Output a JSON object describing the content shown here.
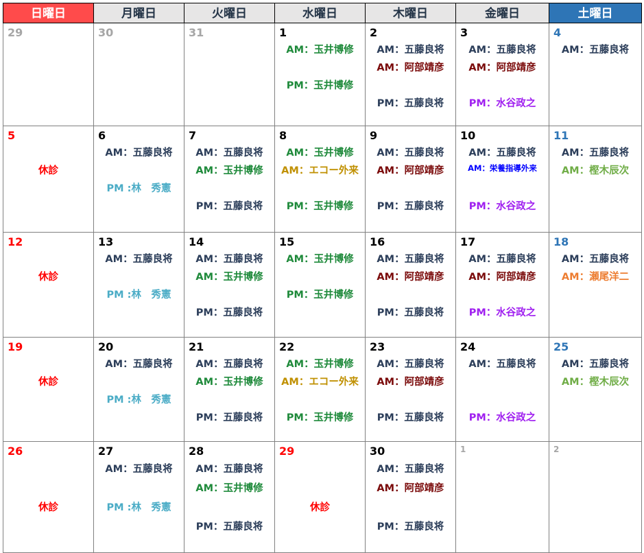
{
  "colors": {
    "navy": "#2c3e5a",
    "green": "#1f8a3b",
    "darkred": "#7a0a0a",
    "purple": "#a020f0",
    "olive": "#c09000",
    "blue": "#0000ff",
    "lightblue": "#4bacc6",
    "lightgreen": "#70ad47",
    "orange": "#ed7d31",
    "red": "#ff0000"
  },
  "weekdays": [
    "日曜日",
    "月曜日",
    "火曜日",
    "水曜日",
    "木曜日",
    "金曜日",
    "土曜日"
  ],
  "weeks": [
    [
      {
        "d": "29",
        "t": "prev",
        "lines": []
      },
      {
        "d": "30",
        "t": "prev",
        "lines": []
      },
      {
        "d": "31",
        "t": "prev",
        "lines": []
      },
      {
        "d": "1",
        "lines": [
          [
            "AM：玉井博修",
            "green"
          ],
          [
            "",
            ""
          ],
          [
            "PM：玉井博修",
            "green"
          ]
        ]
      },
      {
        "d": "2",
        "lines": [
          [
            "AM：五藤良将",
            "navy"
          ],
          [
            "AM：阿部靖彦",
            "darkred"
          ],
          [
            "",
            ""
          ],
          [
            "PM：五藤良将",
            "navy"
          ]
        ]
      },
      {
        "d": "3",
        "lines": [
          [
            "AM：五藤良将",
            "navy"
          ],
          [
            "AM：阿部靖彦",
            "darkred"
          ],
          [
            "",
            ""
          ],
          [
            "PM：水谷政之",
            "purple"
          ]
        ]
      },
      {
        "d": "4",
        "t": "sat",
        "lines": [
          [
            "AM：五藤良将",
            "navy"
          ]
        ]
      }
    ],
    [
      {
        "d": "5",
        "t": "sun",
        "lines": [
          [
            "",
            ""
          ],
          [
            "休診",
            "red"
          ]
        ]
      },
      {
        "d": "6",
        "lines": [
          [
            "AM：五藤良将",
            "navy"
          ],
          [
            "",
            ""
          ],
          [
            "PM :林　秀憲",
            "lightblue"
          ]
        ]
      },
      {
        "d": "7",
        "lines": [
          [
            "AM：五藤良将",
            "navy"
          ],
          [
            "AM：玉井博修",
            "green"
          ],
          [
            "",
            ""
          ],
          [
            "PM：五藤良将",
            "navy"
          ]
        ]
      },
      {
        "d": "8",
        "lines": [
          [
            "AM：玉井博修",
            "green"
          ],
          [
            "AM：エコー外来",
            "olive"
          ],
          [
            "",
            ""
          ],
          [
            "PM：玉井博修",
            "green"
          ]
        ]
      },
      {
        "d": "9",
        "lines": [
          [
            "AM：五藤良将",
            "navy"
          ],
          [
            "AM：阿部靖彦",
            "darkred"
          ],
          [
            "",
            ""
          ],
          [
            "PM：五藤良将",
            "navy"
          ]
        ]
      },
      {
        "d": "10",
        "lines": [
          [
            "AM：五藤良将",
            "navy"
          ],
          [
            "AM：栄養指導外来",
            "blue"
          ],
          [
            "",
            ""
          ],
          [
            "PM：水谷政之",
            "purple"
          ]
        ]
      },
      {
        "d": "11",
        "t": "sat",
        "lines": [
          [
            "AM：五藤良将",
            "navy"
          ],
          [
            "AM：樫木辰次",
            "lightgreen"
          ]
        ]
      }
    ],
    [
      {
        "d": "12",
        "t": "sun",
        "lines": [
          [
            "",
            ""
          ],
          [
            "休診",
            "red"
          ]
        ]
      },
      {
        "d": "13",
        "lines": [
          [
            "AM：五藤良将",
            "navy"
          ],
          [
            "",
            ""
          ],
          [
            "PM :林　秀憲",
            "lightblue"
          ]
        ]
      },
      {
        "d": "14",
        "lines": [
          [
            "AM：五藤良将",
            "navy"
          ],
          [
            "AM：玉井博修",
            "green"
          ],
          [
            "",
            ""
          ],
          [
            "PM：五藤良将",
            "navy"
          ]
        ]
      },
      {
        "d": "15",
        "lines": [
          [
            "AM：玉井博修",
            "green"
          ],
          [
            "",
            ""
          ],
          [
            "PM：玉井博修",
            "green"
          ]
        ]
      },
      {
        "d": "16",
        "lines": [
          [
            "AM：五藤良将",
            "navy"
          ],
          [
            "AM：阿部靖彦",
            "darkred"
          ],
          [
            "",
            ""
          ],
          [
            "PM：五藤良将",
            "navy"
          ]
        ]
      },
      {
        "d": "17",
        "lines": [
          [
            "AM：五藤良将",
            "navy"
          ],
          [
            "AM：阿部靖彦",
            "darkred"
          ],
          [
            "",
            ""
          ],
          [
            "PM：水谷政之",
            "purple"
          ]
        ]
      },
      {
        "d": "18",
        "t": "sat",
        "lines": [
          [
            "AM：五藤良将",
            "navy"
          ],
          [
            "AM：瀬尾洋二",
            "orange"
          ]
        ]
      }
    ],
    [
      {
        "d": "19",
        "t": "sun",
        "lines": [
          [
            "",
            ""
          ],
          [
            "休診",
            "red"
          ]
        ]
      },
      {
        "d": "20",
        "lines": [
          [
            "AM：五藤良将",
            "navy"
          ],
          [
            "",
            ""
          ],
          [
            "PM :林　秀憲",
            "lightblue"
          ]
        ]
      },
      {
        "d": "21",
        "lines": [
          [
            "AM：五藤良将",
            "navy"
          ],
          [
            "AM：玉井博修",
            "green"
          ],
          [
            "",
            ""
          ],
          [
            "PM：五藤良将",
            "navy"
          ]
        ]
      },
      {
        "d": "22",
        "lines": [
          [
            "AM：玉井博修",
            "green"
          ],
          [
            "AM：エコー外来",
            "olive"
          ],
          [
            "",
            ""
          ],
          [
            "PM：玉井博修",
            "green"
          ]
        ]
      },
      {
        "d": "23",
        "lines": [
          [
            "AM：五藤良将",
            "navy"
          ],
          [
            "AM：阿部靖彦",
            "darkred"
          ],
          [
            "",
            ""
          ],
          [
            "PM：五藤良将",
            "navy"
          ]
        ]
      },
      {
        "d": "24",
        "lines": [
          [
            "AM：五藤良将",
            "navy"
          ],
          [
            "",
            ""
          ],
          [
            "",
            ""
          ],
          [
            "PM：水谷政之",
            "purple"
          ]
        ]
      },
      {
        "d": "25",
        "t": "sat",
        "lines": [
          [
            "AM：五藤良将",
            "navy"
          ],
          [
            "AM：樫木辰次",
            "lightgreen"
          ]
        ]
      }
    ],
    [
      {
        "d": "26",
        "t": "sun",
        "lines": [
          [
            "",
            ""
          ],
          [
            "",
            ""
          ],
          [
            "休診",
            "red"
          ]
        ]
      },
      {
        "d": "27",
        "lines": [
          [
            "AM：五藤良将",
            "navy"
          ],
          [
            "",
            ""
          ],
          [
            "PM :林　秀憲",
            "lightblue"
          ]
        ]
      },
      {
        "d": "28",
        "lines": [
          [
            "AM：五藤良将",
            "navy"
          ],
          [
            "AM：玉井博修",
            "green"
          ],
          [
            "",
            ""
          ],
          [
            "PM：五藤良将",
            "navy"
          ]
        ]
      },
      {
        "d": "29",
        "t": "sun",
        "lines": [
          [
            "",
            ""
          ],
          [
            "",
            ""
          ],
          [
            "休診",
            "red"
          ]
        ]
      },
      {
        "d": "30",
        "lines": [
          [
            "AM：五藤良将",
            "navy"
          ],
          [
            "AM：阿部靖彦",
            "darkred"
          ],
          [
            "",
            ""
          ],
          [
            "PM：五藤良将",
            "navy"
          ]
        ]
      },
      {
        "d": "1",
        "t": "next",
        "lines": []
      },
      {
        "d": "2",
        "t": "next",
        "lines": []
      }
    ]
  ]
}
